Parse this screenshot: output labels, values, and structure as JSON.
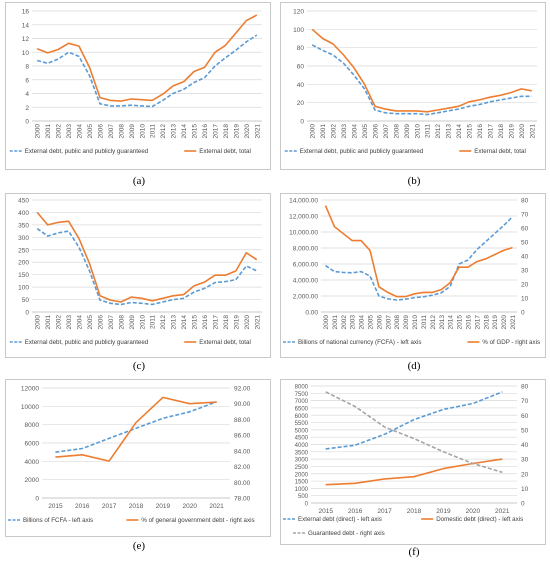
{
  "panels": [
    {
      "id": "a",
      "label": "(a)",
      "chart_data": {
        "type": "line",
        "x": [
          "2000",
          "2001",
          "2002",
          "2003",
          "2004",
          "2005",
          "2006",
          "2007",
          "2008",
          "2009",
          "2010",
          "2011",
          "2012",
          "2013",
          "2014",
          "2015",
          "2016",
          "2017",
          "2018",
          "2019",
          "2020",
          "2021"
        ],
        "ylim": [
          0,
          16
        ],
        "yticks": [
          "0",
          "2",
          "4",
          "6",
          "8",
          "10",
          "12",
          "14",
          "16"
        ],
        "series": [
          {
            "name": "External debt, public and publicly guaranteed",
            "color": "#5b9bd5",
            "dash": true,
            "axis": "left",
            "values": [
              8.8,
              8.4,
              9.0,
              10.0,
              9.4,
              6.6,
              2.5,
              2.2,
              2.2,
              2.3,
              2.2,
              2.1,
              3.0,
              4.0,
              4.6,
              5.6,
              6.3,
              8.0,
              9.2,
              10.3,
              11.5,
              12.5
            ]
          },
          {
            "name": "External debt, total",
            "color": "#ed7d31",
            "dash": false,
            "axis": "left",
            "values": [
              10.5,
              9.9,
              10.4,
              11.3,
              10.9,
              7.8,
              3.4,
              3.0,
              2.9,
              3.2,
              3.1,
              3.0,
              3.9,
              5.1,
              5.7,
              7.2,
              7.8,
              10.0,
              11.0,
              12.8,
              14.6,
              15.4
            ]
          }
        ]
      }
    },
    {
      "id": "b",
      "label": "(b)",
      "chart_data": {
        "type": "line",
        "x": [
          "2000",
          "2001",
          "2002",
          "2003",
          "2004",
          "2005",
          "2006",
          "2007",
          "2008",
          "2009",
          "2010",
          "2011",
          "2012",
          "2013",
          "2014",
          "2015",
          "2016",
          "2017",
          "2018",
          "2019",
          "2020",
          "2021"
        ],
        "ylim": [
          0,
          120
        ],
        "yticks": [
          "0",
          "20",
          "40",
          "60",
          "80",
          "100",
          "120"
        ],
        "series": [
          {
            "name": "External debt, public and publicly guaranteed",
            "color": "#5b9bd5",
            "dash": true,
            "axis": "left",
            "values": [
              83,
              77,
              72,
              63,
              50,
              35,
              12,
              9,
              8,
              8,
              8,
              7,
              9,
              11,
              13,
              16,
              18,
              21,
              23,
              25,
              27,
              27
            ]
          },
          {
            "name": "External debt, total",
            "color": "#ed7d31",
            "dash": false,
            "axis": "left",
            "values": [
              100,
              90,
              84,
              72,
              58,
              40,
              16,
              13,
              11,
              11,
              11,
              10,
              12,
              14,
              16,
              21,
              23,
              26,
              28,
              31,
              35,
              33
            ]
          }
        ]
      }
    },
    {
      "id": "c",
      "label": "(c)",
      "chart_data": {
        "type": "line",
        "x": [
          "2000",
          "2001",
          "2002",
          "2003",
          "2004",
          "2005",
          "2006",
          "2007",
          "2008",
          "2009",
          "2010",
          "2011",
          "2012",
          "2013",
          "2014",
          "2015",
          "2016",
          "2017",
          "2018",
          "2019",
          "2020",
          "2021"
        ],
        "ylim": [
          0,
          450
        ],
        "yticks": [
          "0",
          "50",
          "100",
          "150",
          "200",
          "250",
          "300",
          "350",
          "400",
          "450"
        ],
        "series": [
          {
            "name": "External debt, public and publicly guaranteed",
            "color": "#5b9bd5",
            "dash": true,
            "axis": "left",
            "values": [
              335,
              305,
              318,
              325,
              260,
              165,
              48,
              35,
              30,
              38,
              35,
              30,
              40,
              50,
              55,
              80,
              95,
              118,
              122,
              130,
              185,
              165
            ]
          },
          {
            "name": "External debt, total",
            "color": "#ed7d31",
            "dash": false,
            "axis": "left",
            "values": [
              400,
              350,
              360,
              365,
              295,
              195,
              65,
              48,
              40,
              60,
              55,
              45,
              55,
              65,
              70,
              105,
              120,
              148,
              148,
              165,
              238,
              210
            ]
          }
        ]
      }
    },
    {
      "id": "d",
      "label": "(d)",
      "chart_data": {
        "type": "line",
        "x": [
          "2000",
          "2001",
          "2002",
          "2003",
          "2004",
          "2005",
          "2006",
          "2007",
          "2008",
          "2009",
          "2010",
          "2011",
          "2012",
          "2013",
          "2014",
          "2015",
          "2016",
          "2017",
          "2018",
          "2019",
          "2020",
          "2021"
        ],
        "ylim": [
          0,
          14000
        ],
        "y2lim": [
          0,
          80
        ],
        "yticks": [
          "0.00",
          "2,000.00",
          "4,000.00",
          "6,000.00",
          "8,000.00",
          "10,000.00",
          "12,000.00",
          "14,000.00"
        ],
        "y2ticks": [
          "0",
          "10",
          "20",
          "30",
          "40",
          "50",
          "60",
          "70",
          "80"
        ],
        "series": [
          {
            "name": "Billions of national currency (FCFA) - left axis",
            "color": "#5b9bd5",
            "dash": true,
            "axis": "left",
            "values": [
              5800,
              5050,
              4950,
              4900,
              5050,
              4500,
              2000,
              1650,
              1500,
              1600,
              1800,
              1900,
              2100,
              2400,
              3200,
              6000,
              6500,
              7800,
              8800,
              9800,
              10800,
              11900
            ]
          },
          {
            "name": "% of GDP - right axis",
            "color": "#ed7d31",
            "dash": false,
            "axis": "right",
            "values": [
              76,
              61,
              56,
              51,
              51,
              44,
              18,
              14,
              11,
              11,
              13,
              14,
              14,
              16,
              21,
              32,
              32,
              36,
              38,
              41,
              44,
              46
            ]
          }
        ]
      }
    },
    {
      "id": "e",
      "label": "(e)",
      "chart_data": {
        "type": "line",
        "x": [
          "2015",
          "2016",
          "2017",
          "2018",
          "2019",
          "2020",
          "2021"
        ],
        "ylim": [
          0,
          12000
        ],
        "y2lim": [
          78,
          92
        ],
        "yticks": [
          "0",
          "2000",
          "4000",
          "6000",
          "8000",
          "10000",
          "12000"
        ],
        "y2ticks": [
          "78.00",
          "80.00",
          "82.00",
          "84.00",
          "86.00",
          "88.00",
          "90.00",
          "92.00"
        ],
        "series": [
          {
            "name": "Billions of FCFA - left axis",
            "color": "#5b9bd5",
            "dash": true,
            "axis": "left",
            "values": [
              5000,
              5400,
              6500,
              7600,
              8700,
              9400,
              10500
            ]
          },
          {
            "name": "% of general government debt - right axis",
            "color": "#ed7d31",
            "dash": false,
            "axis": "right",
            "values": [
              83.2,
              83.5,
              82.7,
              87.6,
              90.8,
              90.0,
              90.2
            ]
          }
        ]
      }
    },
    {
      "id": "f",
      "label": "(f)",
      "chart_data": {
        "type": "line",
        "x": [
          "2015",
          "2016",
          "2017",
          "2018",
          "2019",
          "2020",
          "2021"
        ],
        "ylim": [
          0,
          8000
        ],
        "y2lim": [
          0,
          80
        ],
        "yticks": [
          "0",
          "500",
          "1000",
          "1500",
          "2000",
          "2500",
          "3000",
          "3500",
          "4000",
          "4500",
          "5000",
          "5500",
          "6000",
          "6500",
          "7000",
          "7500",
          "8000"
        ],
        "y2ticks": [
          "0",
          "10",
          "20",
          "30",
          "40",
          "50",
          "60",
          "70",
          "80"
        ],
        "series": [
          {
            "name": "External debt (direct) - left axis",
            "color": "#5b9bd5",
            "dash": true,
            "axis": "left",
            "values": [
              3700,
              3950,
              4700,
              5700,
              6400,
              6800,
              7600
            ]
          },
          {
            "name": "Domestic debt (direct) - left axis",
            "color": "#ed7d31",
            "dash": false,
            "axis": "left",
            "values": [
              1250,
              1350,
              1650,
              1800,
              2350,
              2700,
              3000
            ]
          },
          {
            "name": "Guaranteed debt - right axis",
            "color": "#a5a5a5",
            "dash": true,
            "axis": "right",
            "values": [
              76,
              66,
              52,
              44,
              35,
              27,
              21
            ]
          }
        ]
      }
    }
  ]
}
